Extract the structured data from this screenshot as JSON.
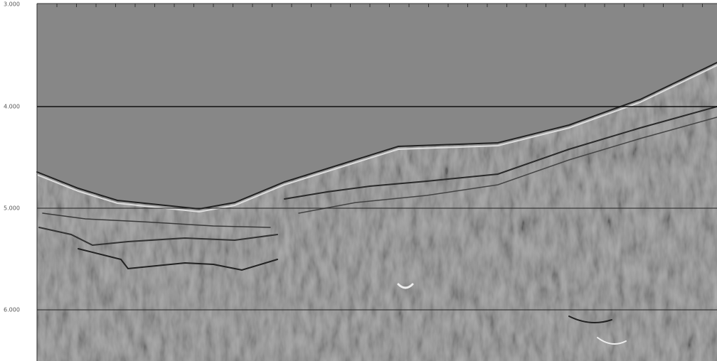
{
  "axis": {
    "labels": [
      "3.000",
      "4.000",
      "5.000",
      "6.000"
    ]
  }
}
